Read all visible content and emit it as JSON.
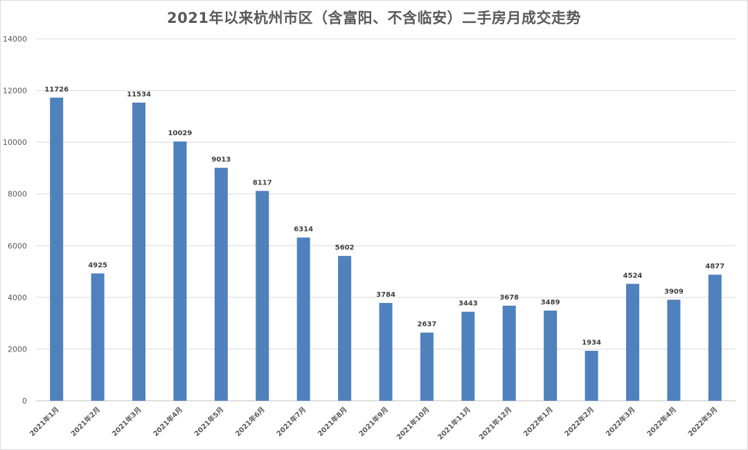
{
  "chart_data": {
    "type": "bar",
    "title": "2021年以来杭州市区（含富阳、不含临安）二手房月成交走势",
    "categories": [
      "2021年1月",
      "2021年2月",
      "2021年3月",
      "2021年4月",
      "2021年5月",
      "2021年6月",
      "2021年7月",
      "2021年8月",
      "2021年9月",
      "2021年10月",
      "2021年11月",
      "2021年12月",
      "2022年1月",
      "2022年2月",
      "2022年3月",
      "2022年4月",
      "2022年5月"
    ],
    "values": [
      11726,
      4925,
      11534,
      10029,
      9013,
      8117,
      6314,
      5602,
      3784,
      2637,
      3443,
      3678,
      3489,
      1934,
      4524,
      3909,
      4877
    ],
    "ylim": [
      0,
      14000
    ],
    "yticks": [
      0,
      2000,
      4000,
      6000,
      8000,
      10000,
      12000,
      14000
    ],
    "grid": true,
    "bar_color": "#4f81bd",
    "data_labels": true
  }
}
